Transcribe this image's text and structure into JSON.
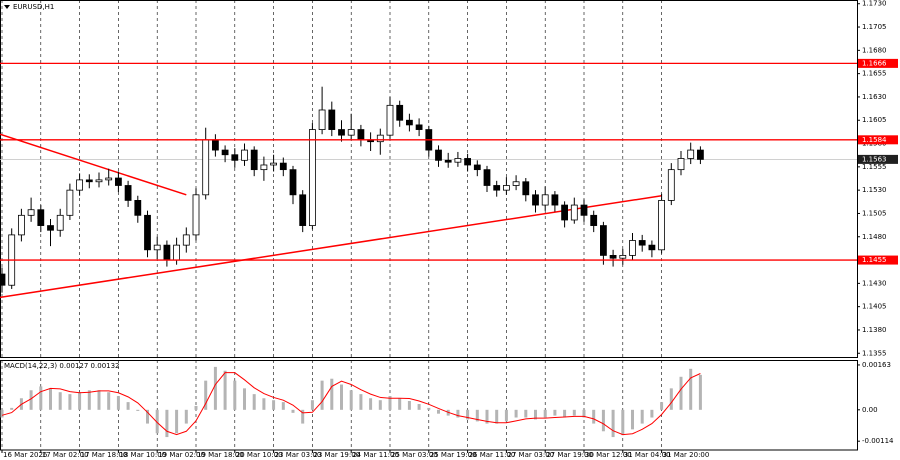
{
  "chart_data": [
    {
      "type": "candlestick",
      "title": "EURUSD,H1",
      "categories": [
        "16 Mar 2026",
        null,
        null,
        null,
        "17 Mar 02:00",
        null,
        null,
        null,
        "17 Mar 18:00",
        null,
        null,
        null,
        "18 Mar 10:00",
        null,
        null,
        null,
        "19 Mar 02:00",
        null,
        null,
        null,
        "19 Mar 18:00",
        null,
        null,
        null,
        "20 Mar 10:00",
        null,
        null,
        null,
        "23 Mar 03:00",
        null,
        null,
        null,
        "23 Mar 19:00",
        null,
        null,
        null,
        "24 Mar 11:00",
        null,
        null,
        null,
        "25 Mar 03:00",
        null,
        null,
        null,
        "25 Mar 19:00",
        null,
        null,
        null,
        "26 Mar 11:00",
        null,
        null,
        null,
        "27 Mar 03:00",
        null,
        null,
        null,
        "27 Mar 19:00",
        null,
        null,
        null,
        "30 Mar 12:00",
        null,
        null,
        null,
        "31 Mar 04:00",
        null,
        null,
        null,
        "31 Mar 20:00",
        null,
        null,
        null,
        null
      ],
      "open": [
        1.144,
        1.1428,
        1.1482,
        1.1503,
        1.1509,
        1.1492,
        1.1487,
        1.1503,
        1.153,
        1.1541,
        1.1539,
        1.1541,
        1.1543,
        1.1535,
        1.1519,
        1.1503,
        1.1466,
        1.1471,
        1.1455,
        1.1471,
        1.1482,
        1.1525,
        1.1584,
        1.1573,
        1.1568,
        1.1562,
        1.1573,
        1.1552,
        1.1557,
        1.1559,
        1.1552,
        1.1525,
        1.1492,
        1.1595,
        1.1616,
        1.1595,
        1.1589,
        1.1595,
        1.1584,
        1.1582,
        1.1589,
        1.1621,
        1.1605,
        1.16,
        1.1595,
        1.1573,
        1.1562,
        1.156,
        1.1564,
        1.1557,
        1.1552,
        1.1535,
        1.153,
        1.1535,
        1.1539,
        1.1525,
        1.1514,
        1.1525,
        1.1514,
        1.1498,
        1.1514,
        1.1503,
        1.1492,
        1.146,
        1.1457,
        1.146,
        1.1476,
        1.1471,
        1.1466,
        1.1519,
        1.1552,
        1.1564,
        1.1573
      ],
      "high": [
        1.1447,
        1.1489,
        1.151,
        1.1522,
        1.1514,
        1.1499,
        1.151,
        1.1537,
        1.1548,
        1.1547,
        1.1549,
        1.1553,
        1.155,
        1.154,
        1.1524,
        1.1508,
        1.148,
        1.1476,
        1.1479,
        1.149,
        1.1532,
        1.1597,
        1.159,
        1.1578,
        1.1575,
        1.158,
        1.1577,
        1.1566,
        1.1568,
        1.1565,
        1.1556,
        1.153,
        1.1602,
        1.1641,
        1.1625,
        1.1605,
        1.1612,
        1.16,
        1.1592,
        1.1596,
        1.163,
        1.1626,
        1.1612,
        1.1607,
        1.1599,
        1.1578,
        1.157,
        1.1571,
        1.1569,
        1.1562,
        1.1556,
        1.154,
        1.1544,
        1.1546,
        1.1543,
        1.153,
        1.1534,
        1.1529,
        1.1518,
        1.1522,
        1.152,
        1.1508,
        1.1496,
        1.1466,
        1.1467,
        1.1484,
        1.1482,
        1.1476,
        1.1526,
        1.1559,
        1.1572,
        1.1581,
        1.1577
      ],
      "low": [
        1.142,
        1.1424,
        1.1475,
        1.1496,
        1.1485,
        1.147,
        1.148,
        1.1498,
        1.1524,
        1.1532,
        1.1533,
        1.1535,
        1.1528,
        1.1512,
        1.1495,
        1.1458,
        1.1456,
        1.1448,
        1.145,
        1.1463,
        1.1476,
        1.152,
        1.1566,
        1.156,
        1.1554,
        1.1556,
        1.1545,
        1.154,
        1.155,
        1.1545,
        1.1515,
        1.1485,
        1.1488,
        1.159,
        1.1588,
        1.1582,
        1.1584,
        1.1577,
        1.1572,
        1.1568,
        1.1585,
        1.1598,
        1.1593,
        1.1588,
        1.1566,
        1.1555,
        1.1554,
        1.1555,
        1.155,
        1.1545,
        1.1528,
        1.1523,
        1.1525,
        1.153,
        1.1518,
        1.1506,
        1.1508,
        1.1507,
        1.149,
        1.1494,
        1.1496,
        1.1485,
        1.145,
        1.1448,
        1.145,
        1.1455,
        1.1464,
        1.1458,
        1.1462,
        1.1514,
        1.1546,
        1.1558,
        1.1558
      ],
      "close": [
        1.1428,
        1.1482,
        1.1503,
        1.1509,
        1.1492,
        1.1487,
        1.1503,
        1.153,
        1.1541,
        1.1539,
        1.1541,
        1.1543,
        1.1535,
        1.1519,
        1.1503,
        1.1466,
        1.1471,
        1.1455,
        1.1471,
        1.1482,
        1.1525,
        1.1584,
        1.1573,
        1.1568,
        1.1562,
        1.1573,
        1.1552,
        1.1557,
        1.1559,
        1.1552,
        1.1525,
        1.1492,
        1.1595,
        1.1616,
        1.1595,
        1.1589,
        1.1595,
        1.1584,
        1.1582,
        1.1589,
        1.1621,
        1.1605,
        1.16,
        1.1595,
        1.1573,
        1.1562,
        1.156,
        1.1564,
        1.1557,
        1.1552,
        1.1535,
        1.153,
        1.1535,
        1.1539,
        1.1525,
        1.1514,
        1.1525,
        1.1514,
        1.1498,
        1.1514,
        1.1503,
        1.1492,
        1.146,
        1.1457,
        1.146,
        1.1476,
        1.1471,
        1.1466,
        1.1519,
        1.1552,
        1.1564,
        1.1573,
        1.1563
      ],
      "up_color": "#ffffff",
      "down_color": "#000000",
      "wick_color": "#000000",
      "ylim": [
        1.1351,
        1.1734
      ],
      "yticks": [
        {
          "value": 1.173,
          "label": "1.1730"
        },
        1.1705,
        {
          "value": 1.168,
          "label": "1.1680"
        },
        1.1655,
        {
          "value": 1.163,
          "label": "1.1630"
        },
        1.1605,
        {
          "value": 1.158,
          "label": "1.1580"
        },
        1.1555,
        {
          "value": 1.153,
          "label": "1.1530"
        },
        1.1505,
        {
          "value": 1.148,
          "label": "1.1480"
        },
        1.1455,
        {
          "value": 1.143,
          "label": "1.1430"
        },
        1.1405,
        {
          "value": 1.138,
          "label": "1.1380"
        },
        1.1355
      ],
      "grid": "x",
      "levels": [
        {
          "value": 1.1666,
          "label": "1.1666"
        },
        {
          "value": 1.1584,
          "label": "1.1584"
        },
        {
          "value": 1.1455,
          "label": "1.1455"
        }
      ],
      "level_color": "#ff0000",
      "last_price": {
        "value": 1.1563,
        "label": "1.1563"
      },
      "trendlines": [
        {
          "from": [
            0,
            1.159
          ],
          "to": [
            19,
            1.1525
          ]
        },
        {
          "from": [
            0,
            1.1415
          ],
          "to": [
            68,
            1.1524
          ]
        }
      ],
      "trendline_color": "#ff0000"
    },
    {
      "type": "macd",
      "title": "MACD(14,22,3) 0.00127 0.00132",
      "histogram": {
        "color": "#b4b4b4",
        "values": [
          -0.00028,
          7e-05,
          0.00042,
          0.00071,
          0.00085,
          0.00078,
          0.00064,
          0.00057,
          0.00064,
          0.00071,
          0.00071,
          0.00064,
          0.0005,
          0.00028,
          -4e-05,
          -0.0005,
          -0.00085,
          -0.00099,
          -0.00085,
          -0.0005,
          0.00014,
          0.00106,
          0.00156,
          0.00142,
          0.00106,
          0.00078,
          0.00057,
          0.00042,
          0.00035,
          0.00028,
          -0.00011,
          -0.0005,
          0.00035,
          0.00106,
          0.00113,
          0.00092,
          0.00071,
          0.00057,
          0.00042,
          0.00035,
          0.0005,
          0.00042,
          0.00032,
          0.00021,
          7e-05,
          -0.00014,
          -0.00021,
          -0.00028,
          -0.00035,
          -0.00042,
          -0.0005,
          -0.0005,
          -0.00042,
          -0.00028,
          -0.00028,
          -0.00035,
          -0.00028,
          -0.00021,
          -0.00028,
          -0.00021,
          -0.00028,
          -0.0005,
          -0.00078,
          -0.00099,
          -0.00092,
          -0.00071,
          -0.0005,
          -0.00028,
          0.00028,
          0.00078,
          0.0012,
          0.00149,
          0.00127
        ]
      },
      "signal": {
        "color": "#ff0000",
        "values": [
          -0.0002,
          -0.0001,
          0.0002,
          0.0004,
          0.00066,
          0.00078,
          0.00076,
          0.00066,
          0.00062,
          0.00064,
          0.00069,
          0.00069,
          0.00062,
          0.00047,
          0.00025,
          -9e-05,
          -0.00046,
          -0.00078,
          -0.0009,
          -0.00078,
          -0.0004,
          0.00023,
          0.00092,
          0.00135,
          0.00135,
          0.00109,
          0.0008,
          0.00059,
          0.00045,
          0.00035,
          0.00017,
          -0.00011,
          -9e-05,
          0.0003,
          0.00085,
          0.00104,
          0.00092,
          0.00073,
          0.00057,
          0.00045,
          0.00042,
          0.00042,
          0.00041,
          0.00032,
          0.0002,
          5e-05,
          -9e-05,
          -0.00021,
          -0.00028,
          -0.00035,
          -0.00042,
          -0.00047,
          -0.00047,
          -0.0004,
          -0.00033,
          -0.0003,
          -0.0003,
          -0.00028,
          -0.00026,
          -0.00024,
          -0.00024,
          -0.00033,
          -0.00051,
          -0.00076,
          -0.0009,
          -0.00087,
          -0.00071,
          -0.0005,
          -0.00017,
          0.00026,
          0.00075,
          0.00116,
          0.00132
        ]
      },
      "ylim": [
        -0.00146,
        0.00181
      ],
      "yticks": [
        0.00163,
        {
          "value": 0,
          "label": "0.00"
        },
        -0.00114
      ]
    }
  ]
}
